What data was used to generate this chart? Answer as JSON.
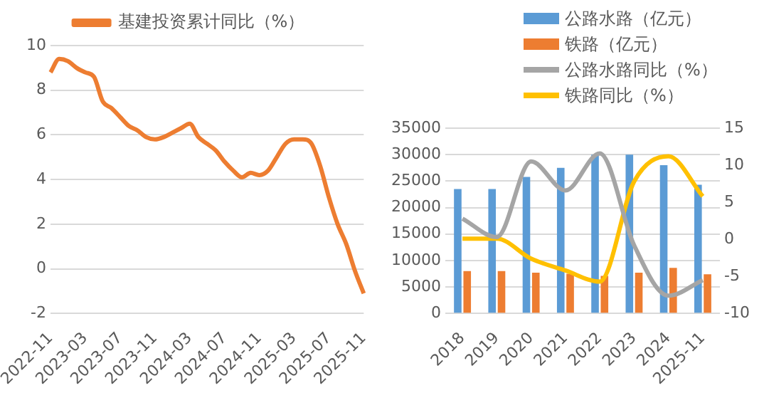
{
  "chart_data": [
    {
      "type": "line",
      "categories": [
        "2022-11",
        null,
        null,
        null,
        "2023-03",
        null,
        null,
        null,
        "2023-07",
        null,
        null,
        null,
        "2023-11",
        null,
        null,
        null,
        "2024-03",
        null,
        null,
        null,
        "2024-07",
        null,
        null,
        null,
        "2024-11",
        null,
        null,
        null,
        "2025-03",
        null,
        null,
        null,
        "2025-07",
        null,
        null,
        null,
        "2025-11"
      ],
      "series": [
        {
          "name": "基建投资累计同比（%）",
          "color": "#ed7d31",
          "values": [
            8.8,
            9.4,
            9.3,
            9.0,
            8.8,
            8.6,
            7.5,
            7.2,
            6.8,
            6.4,
            6.2,
            5.9,
            5.8,
            5.9,
            6.1,
            6.3,
            6.5,
            5.9,
            5.6,
            5.3,
            4.8,
            4.4,
            4.1,
            4.3,
            4.2,
            4.4,
            5.0,
            5.6,
            5.8,
            5.8,
            5.6,
            4.6,
            3.2,
            2.0,
            1.1,
            -0.1,
            -1.1
          ]
        }
      ],
      "ylim": [
        -2,
        10
      ],
      "yticks": [
        -2,
        0,
        2,
        4,
        6,
        8,
        10
      ],
      "grid": "y",
      "legend": "top",
      "marker": "none"
    },
    {
      "type": "bar",
      "categories": [
        "2018",
        "2019",
        "2020",
        "2021",
        "2022",
        "2023",
        "2024",
        "2025-11"
      ],
      "series": [
        {
          "name": "公路水路（亿元）",
          "color": "#5b9bd5",
          "values": [
            23500,
            23500,
            25800,
            27500,
            30000,
            30000,
            28000,
            24300
          ]
        },
        {
          "name": "铁路（亿元）",
          "color": "#ed7d31",
          "values": [
            8000,
            8000,
            7700,
            7500,
            7100,
            7700,
            8600,
            7400
          ]
        },
        {
          "name": "公路水路同比（%）",
          "type": "line",
          "axis": "y2",
          "color": "#a5a5a5",
          "values": [
            2.8,
            0.3,
            10.5,
            6.6,
            11.6,
            -0.8,
            -7.6,
            -5.5
          ]
        },
        {
          "name": "铁路同比（%）",
          "type": "line",
          "axis": "y2",
          "color": "#ffc000",
          "values": [
            0.1,
            0.1,
            -2.6,
            -4.2,
            -5.7,
            7.8,
            11.2,
            5.8
          ]
        }
      ],
      "ylim": [
        0,
        35000
      ],
      "yticks": [
        0,
        5000,
        10000,
        15000,
        20000,
        25000,
        30000,
        35000
      ],
      "y2lim": [
        -10,
        15
      ],
      "y2ticks": [
        -10,
        -5,
        0,
        5,
        10,
        15
      ],
      "grid": "y",
      "legend": "top",
      "marker": "none"
    }
  ]
}
